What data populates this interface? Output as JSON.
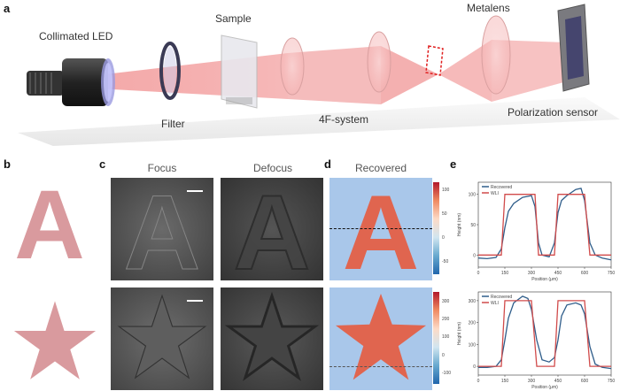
{
  "panel_a": {
    "letter": "a",
    "labels": {
      "led": "Collimated LED",
      "sample": "Sample",
      "filter": "Filter",
      "fourf": "4F-system",
      "metalens": "Metalens",
      "sensor": "Polarization sensor"
    }
  },
  "panel_b": {
    "letter": "b",
    "glyph_a": "A",
    "glyph_star": "★",
    "shape_color": "#d99a9e"
  },
  "panel_c": {
    "letter": "c",
    "focus_title": "Focus",
    "defocus_title": "Defocus",
    "glyph_a": "A"
  },
  "panel_d": {
    "letter": "d",
    "title": "Recovered",
    "glyph_a": "A",
    "colorbar_a_ticks": [
      "100",
      "50",
      "0",
      "-50"
    ],
    "colorbar_star_ticks": [
      "300",
      "200",
      "100",
      "0",
      "-100"
    ]
  },
  "panel_e": {
    "letter": "e"
  },
  "chart_data": [
    {
      "type": "line",
      "xlabel": "Position (μm)",
      "ylabel": "Height (nm)",
      "xlim": [
        0,
        750
      ],
      "ylim": [
        -20,
        120
      ],
      "xticks": [
        "0",
        "150",
        "300",
        "450",
        "600",
        "750"
      ],
      "yticks": [
        "0",
        "50",
        "100"
      ],
      "x": [
        0,
        50,
        100,
        130,
        150,
        170,
        200,
        250,
        300,
        320,
        340,
        360,
        400,
        430,
        450,
        470,
        500,
        550,
        580,
        600,
        630,
        660,
        700,
        750
      ],
      "series": [
        {
          "name": "Recovered",
          "color": "#2f5d8a",
          "values": [
            -5,
            -6,
            -4,
            10,
            45,
            72,
            85,
            95,
            98,
            80,
            20,
            0,
            -3,
            20,
            70,
            90,
            98,
            108,
            110,
            90,
            20,
            0,
            -5,
            -8
          ]
        },
        {
          "name": "WLI",
          "color": "#d14b4b",
          "values": [
            0,
            0,
            0,
            0,
            100,
            100,
            100,
            100,
            100,
            100,
            0,
            0,
            0,
            0,
            100,
            100,
            100,
            100,
            100,
            100,
            0,
            0,
            0,
            0
          ]
        }
      ]
    },
    {
      "type": "line",
      "xlabel": "Position (μm)",
      "ylabel": "Height (nm)",
      "xlim": [
        0,
        750
      ],
      "ylim": [
        -40,
        340
      ],
      "xticks": [
        "0",
        "150",
        "300",
        "450",
        "600",
        "750"
      ],
      "yticks": [
        "0",
        "100",
        "200",
        "300"
      ],
      "x": [
        0,
        50,
        100,
        130,
        150,
        170,
        200,
        250,
        280,
        300,
        330,
        360,
        400,
        430,
        450,
        470,
        500,
        550,
        580,
        600,
        630,
        660,
        700,
        750
      ],
      "series": [
        {
          "name": "Recovered",
          "color": "#2f5d8a",
          "values": [
            -5,
            -5,
            0,
            30,
            120,
            220,
            290,
            320,
            310,
            260,
            120,
            30,
            20,
            40,
            120,
            230,
            280,
            290,
            280,
            240,
            90,
            10,
            -5,
            -10
          ]
        },
        {
          "name": "WLI",
          "color": "#d14b4b",
          "values": [
            0,
            0,
            0,
            0,
            300,
            300,
            300,
            300,
            300,
            300,
            0,
            0,
            0,
            0,
            300,
            300,
            300,
            300,
            300,
            300,
            0,
            0,
            0,
            0
          ]
        }
      ]
    }
  ]
}
